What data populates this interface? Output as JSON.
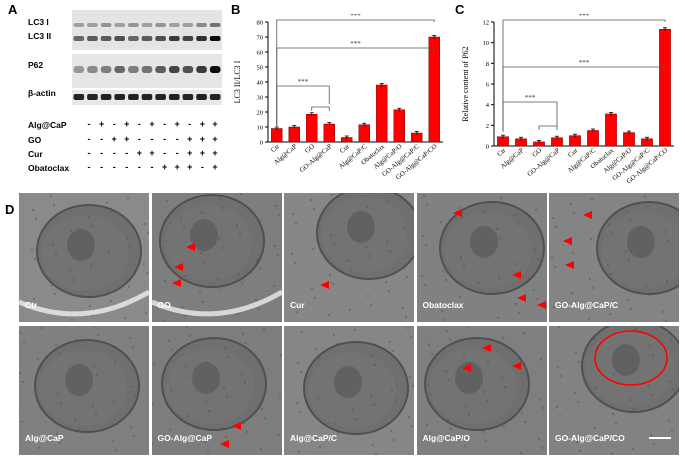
{
  "panels": {
    "A": "A",
    "B": "B",
    "C": "C",
    "D": "D"
  },
  "blot": {
    "rows": [
      "LC3 I",
      "LC3 II",
      "P62",
      "β-actin"
    ],
    "conditions": [
      "Alg@CaP",
      "GO",
      "Cur",
      "Obatoclax"
    ],
    "signs": [
      [
        "-",
        "+",
        "-",
        "+",
        "-",
        "+",
        "-",
        "+",
        "-",
        "+",
        "+"
      ],
      [
        "-",
        "-",
        "+",
        "+",
        "-",
        "-",
        "-",
        "-",
        "+",
        "+",
        "+"
      ],
      [
        "-",
        "-",
        "-",
        "-",
        "+",
        "+",
        "-",
        "-",
        "+",
        "+",
        "+"
      ],
      [
        "-",
        "-",
        "-",
        "-",
        "-",
        "-",
        "+",
        "+",
        "+",
        "-",
        "+"
      ]
    ]
  },
  "chart_data": [
    {
      "type": "bar",
      "ylabel": "LC3 II/LC3 I",
      "ylim": [
        0,
        80
      ],
      "yticks": [
        "0",
        "10",
        "20",
        "30",
        "40",
        "50",
        "60",
        "70",
        "80"
      ],
      "categories": [
        "Ctr",
        "Alg@CaP",
        "GO",
        "GO-Alg@CaP",
        "Cur",
        "Alg@CaP/C",
        "Obatoclax",
        "Alg@CaP/O",
        "GO-Alg@CaP/C",
        "GO-Alg@CaP/CO"
      ],
      "values": [
        9,
        10,
        18.5,
        12,
        3,
        11.5,
        38,
        21.5,
        6,
        70
      ],
      "color": "#ff0000",
      "significance": [
        "***",
        "***",
        "***"
      ]
    },
    {
      "type": "bar",
      "ylabel": "Relative content of P62",
      "ylim": [
        0,
        12
      ],
      "yticks": [
        "0",
        "2",
        "4",
        "6",
        "8",
        "10",
        "12"
      ],
      "categories": [
        "Ctr",
        "Alg@CaP",
        "GO",
        "GO-Alg@CaP",
        "Cur",
        "Alg@CaP/C",
        "Obatoclax",
        "Alg@CaP/O",
        "GO-Alg@CaP/C",
        "GO-Alg@CaP/CO"
      ],
      "values": [
        0.9,
        0.7,
        0.4,
        0.8,
        1.0,
        1.5,
        3.1,
        1.3,
        0.7,
        11.3
      ],
      "color": "#ff0000",
      "significance": [
        "***",
        "***",
        "***"
      ]
    }
  ],
  "em": {
    "tiles": [
      {
        "label": "Ctr"
      },
      {
        "label": "GO"
      },
      {
        "label": "Cur"
      },
      {
        "label": "Obatoclax"
      },
      {
        "label": "GO-Alg@CaP/C"
      },
      {
        "label": "Alg@CaP"
      },
      {
        "label": "GO-Alg@CaP"
      },
      {
        "label": "Alg@CaP/C"
      },
      {
        "label": "Alg@CaP/O"
      },
      {
        "label": "GO-Alg@CaP/CO"
      }
    ]
  }
}
